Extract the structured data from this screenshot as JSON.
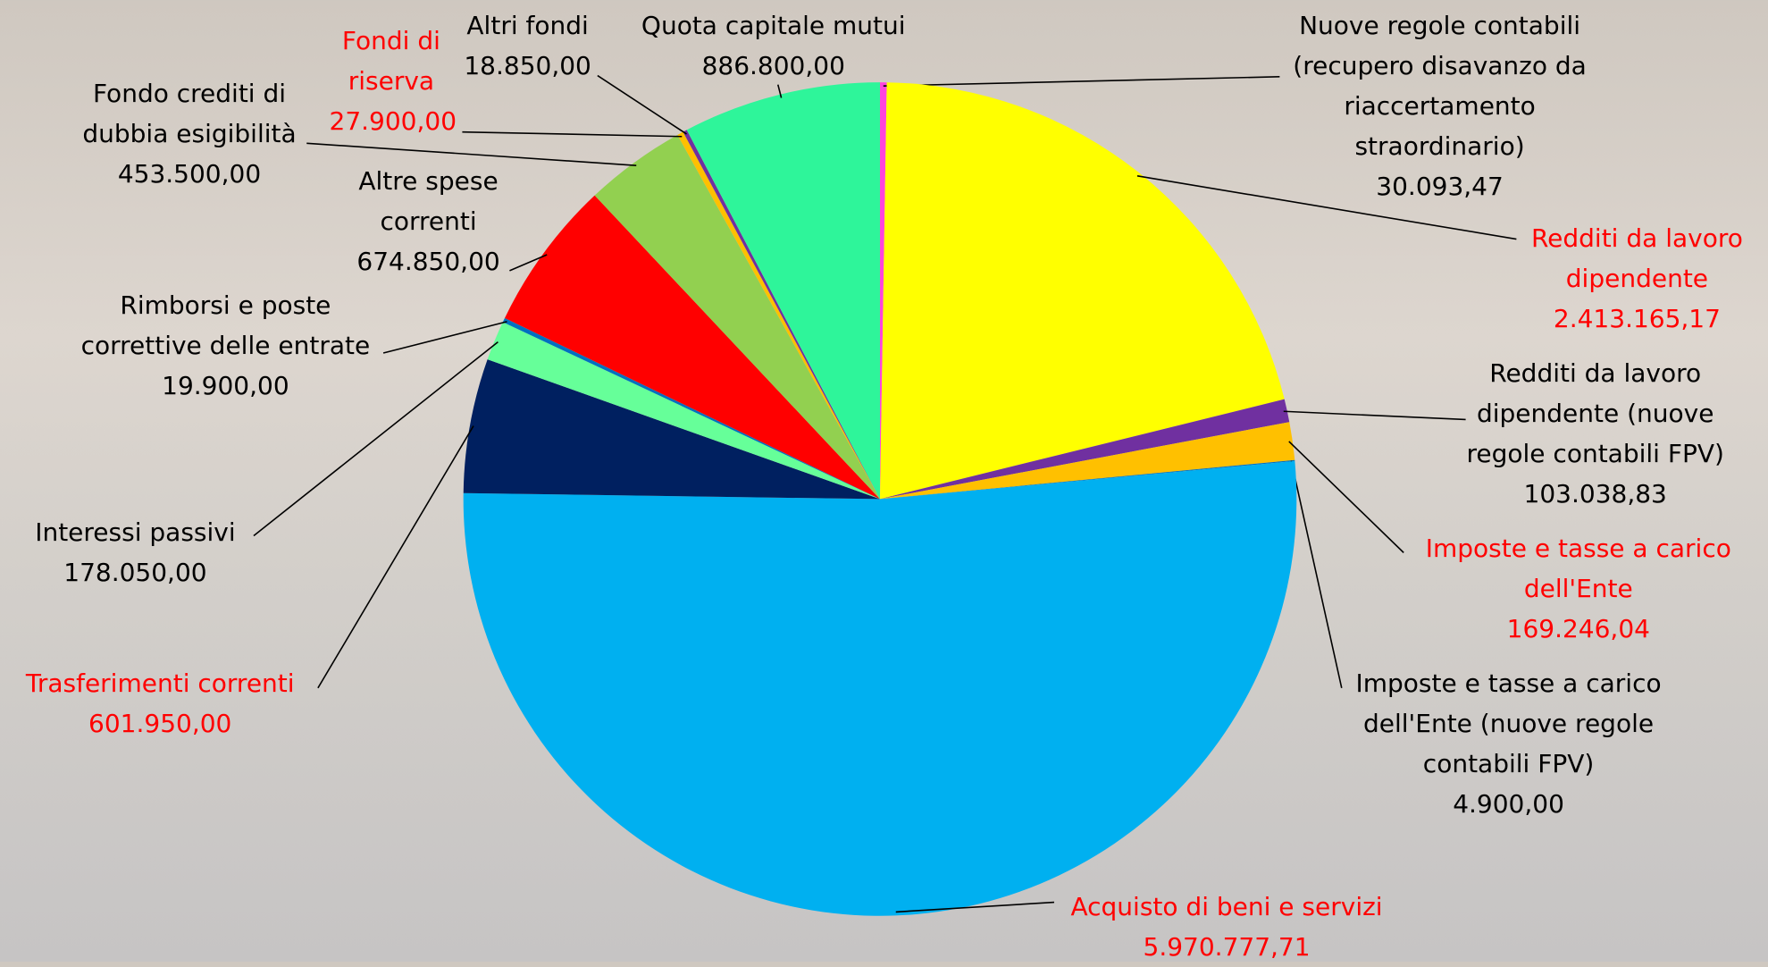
{
  "chart_data": {
    "type": "pie",
    "categories": [
      "Nuove regole contabili (recupero disavanzo da riaccertamento straordinario)",
      "Redditi da lavoro dipendente",
      "Redditi da lavoro dipendente (nuove regole contabili FPV)",
      "Imposte e tasse a carico dell'Ente",
      "Imposte e tasse a carico dell'Ente (nuove regole contabili FPV)",
      "Acquisto di beni e servizi",
      "Trasferimenti correnti",
      "Interessi passivi",
      "Rimborsi e poste correttive delle entrate",
      "Altre spese correnti",
      "Fondo crediti di dubbia esigibilità",
      "Fondi di riserva",
      "Altri fondi",
      "Quota capitale mutui"
    ],
    "values": [
      30093.47,
      2413165.17,
      103038.83,
      169246.04,
      4900,
      5970777.71,
      601950,
      178050,
      19900,
      674850,
      453500,
      27900,
      18850,
      886800
    ],
    "value_labels": [
      "30.093,47",
      "2.413.165,17",
      "103.038,83",
      "169.246,04",
      "4.900,00",
      "5.970.777,71",
      "601.950,00",
      "178.050,00",
      "19.900,00",
      "674.850,00",
      "453.500,00",
      "27.900,00",
      "18.850,00",
      "886.800,00"
    ],
    "colors": [
      "#ff44dd",
      "#ffff00",
      "#7030a0",
      "#ffc000",
      "#0070c0",
      "#00b0f0",
      "#002060",
      "#66ff99",
      "#0070c0",
      "#ff0000",
      "#92d050",
      "#ffc000",
      "#7030a0",
      "#2ef59a"
    ],
    "label_colors": [
      "#000000",
      "#ff0000",
      "#000000",
      "#ff0000",
      "#000000",
      "#ff0000",
      "#ff0000",
      "#000000",
      "#000000",
      "#000000",
      "#000000",
      "#ff0000",
      "#000000",
      "#000000"
    ]
  }
}
